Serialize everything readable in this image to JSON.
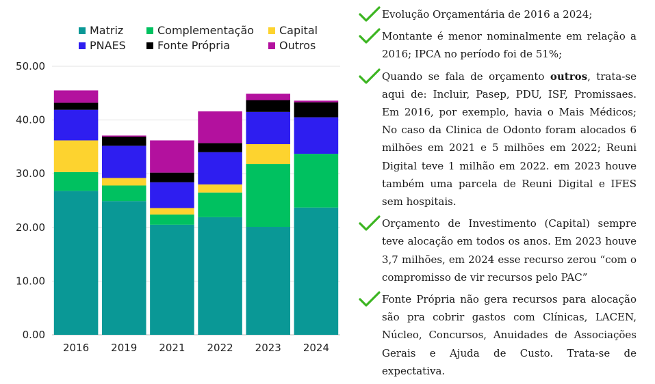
{
  "chart_data": {
    "type": "bar",
    "stacked": true,
    "categories": [
      "2016",
      "2019",
      "2021",
      "2022",
      "2023",
      "2024"
    ],
    "series": [
      {
        "name": "Matriz",
        "color": "#0a9896",
        "values": [
          26.8,
          24.9,
          20.5,
          21.9,
          20.1,
          23.7
        ]
      },
      {
        "name": "Complementação",
        "color": "#00c160",
        "values": [
          3.5,
          2.9,
          1.9,
          4.6,
          11.7,
          10.0
        ]
      },
      {
        "name": "Capital",
        "color": "#fdd32f",
        "values": [
          5.9,
          1.4,
          1.2,
          1.5,
          3.7,
          0.0
        ]
      },
      {
        "name": "PNAES",
        "color": "#2e1ef0",
        "values": [
          5.7,
          6.0,
          4.8,
          6.0,
          6.0,
          6.8
        ]
      },
      {
        "name": "Fonte Própria",
        "color": "#000000",
        "values": [
          1.3,
          1.7,
          1.8,
          1.7,
          2.2,
          2.8
        ]
      },
      {
        "name": "Outros",
        "color": "#b3119e",
        "values": [
          2.3,
          0.2,
          6.0,
          5.9,
          1.2,
          0.3
        ]
      }
    ],
    "yticks": [
      "0.00",
      "10.00",
      "20.00",
      "30.00",
      "40.00",
      "50.00"
    ],
    "ylim": [
      0,
      50
    ],
    "grid": true,
    "legend": "top",
    "title": "",
    "xlabel": "",
    "ylabel": ""
  },
  "notes": [
    {
      "text": "Evolução Orçamentária de 2016 a 2024;"
    },
    {
      "text": "Montante é menor nominalmente em relação a 2016; IPCA no período foi de 51%;"
    },
    {
      "before": "Quando se fala de orçamento ",
      "bold": "outros",
      "after": ", trata-se aqui de: Incluir, Pasep, PDU, ISF, Promissaes. Em 2016, por exemplo, havia o Mais Médicos; No caso da Clinica de Odonto foram alocados 6 milhões em 2021 e 5 milhões em 2022; Reuni Digital teve 1 milhão em 2022. em 2023 houve também uma parcela de Reuni Digital e IFES sem hospitais."
    },
    {
      "text": "Orçamento de Investimento (Capital) sempre teve alocação em todos os anos. Em 2023 houve 3,7 milhões, em 2024 esse recurso zerou “com o compromisso de vir recursos pelo PAC”"
    },
    {
      "text": "Fonte Própria não gera recursos para alocação são pra cobrir gastos com Clínicas, LACEN, Núcleo, Concursos, Anuidades de Associações Gerais e Ajuda de Custo. Trata-se de expectativa."
    }
  ],
  "check_icon": "green-checkmark-icon",
  "check_color": "#3cb521"
}
